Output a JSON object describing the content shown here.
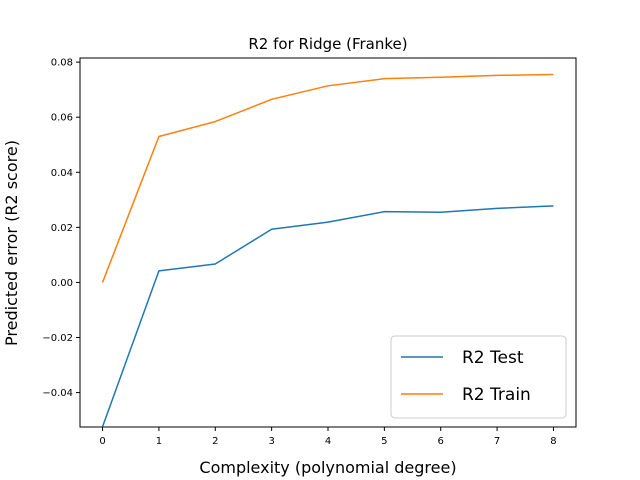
{
  "chart_data": {
    "type": "line",
    "title": "R2 for Ridge (Franke)",
    "xlabel": "Complexity (polynomial degree)",
    "ylabel": "Predicted error (R2 score)",
    "x": [
      0,
      1,
      2,
      3,
      4,
      5,
      6,
      7,
      8
    ],
    "xlim": [
      -0.4,
      8.4
    ],
    "ylim": [
      -0.0525,
      0.0815
    ],
    "xticks": [
      "0",
      "1",
      "2",
      "3",
      "4",
      "5",
      "6",
      "7",
      "8"
    ],
    "yticks": [
      -0.04,
      -0.02,
      0.0,
      0.02,
      0.04,
      0.06,
      0.08
    ],
    "ytick_labels": [
      "−0.04",
      "−0.02",
      "0.00",
      "0.02",
      "0.04",
      "0.06",
      "0.08"
    ],
    "grid": false,
    "legend_position": "bottom-right",
    "series": [
      {
        "name": "R2 Test",
        "color": "#1f77b4",
        "values": [
          -0.0524,
          0.0042,
          0.0067,
          0.0193,
          0.0219,
          0.0257,
          0.0255,
          0.0269,
          0.0278
        ]
      },
      {
        "name": "R2 Train",
        "color": "#ff7f0e",
        "values": [
          0.0,
          0.053,
          0.0584,
          0.0665,
          0.0714,
          0.074,
          0.0745,
          0.0752,
          0.0755
        ]
      }
    ]
  }
}
